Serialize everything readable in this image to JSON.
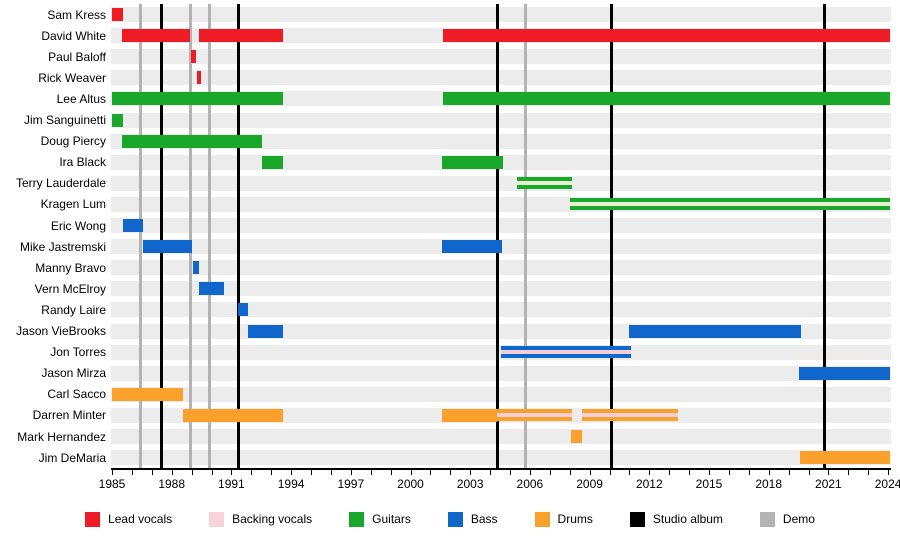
{
  "chart_data": {
    "type": "timeline",
    "title": "Band members timeline (Gantt-style, no visible title)",
    "x_axis": {
      "start_year": 1985,
      "end_year": 2024.2,
      "labeled_ticks": [
        1985,
        1988,
        1991,
        1994,
        1997,
        2000,
        2003,
        2006,
        2009,
        2012,
        2015,
        2018,
        2021,
        2024
      ],
      "minor_tick_every_years": 1
    },
    "colors": {
      "lead_vocals": "#ee1c25",
      "backing_vocals": "#f8d3d8",
      "guitars": "#19a82c",
      "bass": "#1166cc",
      "drums": "#f9a12a",
      "album": "#000000",
      "demo": "#b3b3b3",
      "row_band": "#ececec",
      "stripe_backing_vocals": "#f4cfdb",
      "stripe_backing_vocals_on_green": "#e9efcf"
    },
    "album_lines_years": [
      1987.5,
      1991.35,
      2004.35,
      2010.1,
      2020.8
    ],
    "demo_lines_years": [
      1986.45,
      1988.95,
      1989.9,
      2005.8
    ],
    "members": [
      {
        "name": "Sam Kress",
        "segments": [
          {
            "start": 1985.0,
            "end": 1985.55,
            "role": "lead_vocals"
          }
        ]
      },
      {
        "name": "David White",
        "segments": [
          {
            "start": 1985.5,
            "end": 1988.9,
            "role": "lead_vocals"
          },
          {
            "start": 1989.35,
            "end": 1993.6,
            "role": "lead_vocals"
          },
          {
            "start": 2001.65,
            "end": 2024.1,
            "role": "lead_vocals"
          }
        ]
      },
      {
        "name": "Paul Baloff",
        "segments": [
          {
            "start": 1988.95,
            "end": 1989.2,
            "role": "lead_vocals"
          }
        ]
      },
      {
        "name": "Rick Weaver",
        "segments": [
          {
            "start": 1989.25,
            "end": 1989.45,
            "role": "lead_vocals"
          }
        ]
      },
      {
        "name": "Lee Altus",
        "segments": [
          {
            "start": 1985.0,
            "end": 1993.6,
            "role": "guitars"
          },
          {
            "start": 2001.65,
            "end": 2024.1,
            "role": "guitars"
          }
        ]
      },
      {
        "name": "Jim Sanguinetti",
        "segments": [
          {
            "start": 1985.0,
            "end": 1985.55,
            "role": "guitars"
          }
        ]
      },
      {
        "name": "Doug Piercy",
        "segments": [
          {
            "start": 1985.5,
            "end": 1992.55,
            "role": "guitars"
          }
        ]
      },
      {
        "name": "Ira Black",
        "segments": [
          {
            "start": 1992.55,
            "end": 1993.6,
            "role": "guitars"
          },
          {
            "start": 2001.6,
            "end": 2004.65,
            "role": "guitars"
          }
        ]
      },
      {
        "name": "Terry Lauderdale",
        "segments": [
          {
            "start": 2005.35,
            "end": 2008.1,
            "role": "guitars",
            "stripe": "stripe_backing_vocals_on_green"
          }
        ]
      },
      {
        "name": "Kragen Lum",
        "segments": [
          {
            "start": 2008.0,
            "end": 2024.1,
            "role": "guitars",
            "stripe": "stripe_backing_vocals_on_green"
          }
        ]
      },
      {
        "name": "Eric Wong",
        "segments": [
          {
            "start": 1985.55,
            "end": 1986.55,
            "role": "bass"
          }
        ]
      },
      {
        "name": "Mike Jastremski",
        "segments": [
          {
            "start": 1986.55,
            "end": 1989.0,
            "role": "bass"
          },
          {
            "start": 2001.6,
            "end": 2004.6,
            "role": "bass"
          }
        ]
      },
      {
        "name": "Manny Bravo",
        "segments": [
          {
            "start": 1989.05,
            "end": 1989.35,
            "role": "bass"
          }
        ]
      },
      {
        "name": "Vern McElroy",
        "segments": [
          {
            "start": 1989.35,
            "end": 1990.65,
            "role": "bass"
          }
        ]
      },
      {
        "name": "Randy Laire",
        "segments": [
          {
            "start": 1991.35,
            "end": 1991.85,
            "role": "bass"
          }
        ]
      },
      {
        "name": "Jason VieBrooks",
        "segments": [
          {
            "start": 1991.85,
            "end": 1993.6,
            "role": "bass"
          },
          {
            "start": 2011.0,
            "end": 2019.6,
            "role": "bass"
          }
        ]
      },
      {
        "name": "Jon Torres",
        "segments": [
          {
            "start": 2004.55,
            "end": 2011.1,
            "role": "bass",
            "stripe": "stripe_backing_vocals"
          }
        ]
      },
      {
        "name": "Jason Mirza",
        "segments": [
          {
            "start": 2019.5,
            "end": 2024.1,
            "role": "bass"
          }
        ]
      },
      {
        "name": "Carl Sacco",
        "segments": [
          {
            "start": 1985.0,
            "end": 1988.55,
            "role": "drums"
          }
        ]
      },
      {
        "name": "Darren Minter",
        "segments": [
          {
            "start": 1988.55,
            "end": 1993.6,
            "role": "drums"
          },
          {
            "start": 2001.6,
            "end": 2004.35,
            "role": "drums"
          },
          {
            "start": 2004.35,
            "end": 2008.1,
            "role": "drums",
            "stripe": "stripe_backing_vocals"
          },
          {
            "start": 2008.6,
            "end": 2013.45,
            "role": "drums",
            "stripe": "stripe_backing_vocals"
          }
        ]
      },
      {
        "name": "Mark Hernandez",
        "segments": [
          {
            "start": 2008.05,
            "end": 2008.6,
            "role": "drums"
          }
        ]
      },
      {
        "name": "Jim DeMaria",
        "segments": [
          {
            "start": 2019.55,
            "end": 2024.1,
            "role": "drums"
          }
        ]
      }
    ],
    "legend": [
      {
        "label": "Lead vocals",
        "color_key": "lead_vocals"
      },
      {
        "label": "Backing vocals",
        "color_key": "backing_vocals"
      },
      {
        "label": "Guitars",
        "color_key": "guitars"
      },
      {
        "label": "Bass",
        "color_key": "bass"
      },
      {
        "label": "Drums",
        "color_key": "drums"
      },
      {
        "label": "Studio album",
        "color_key": "album"
      },
      {
        "label": "Demo",
        "color_key": "demo"
      }
    ]
  }
}
